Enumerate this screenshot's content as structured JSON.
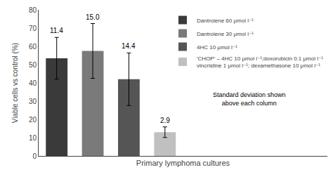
{
  "chart_data": {
    "type": "bar",
    "xlabel": "Primary lymphoma cultures",
    "ylabel": "Viable cells vs control (%)",
    "categories": [
      null,
      null,
      null,
      null
    ],
    "series": [
      {
        "name": "Dantrolene 60 μmol l⁻¹",
        "color": "#3a3a3a",
        "values": [
          53.5,
          null,
          null,
          null
        ],
        "errors": [
          11.4,
          null,
          null,
          null
        ],
        "error_labels": [
          "11.4",
          null,
          null,
          null
        ]
      },
      {
        "name": "Dantrolene 30 μmol l⁻¹",
        "color": "#7a7a7a",
        "values": [
          null,
          57.5,
          null,
          null
        ],
        "errors": [
          null,
          15.0,
          null,
          null
        ],
        "error_labels": [
          null,
          "15.0",
          null,
          null
        ]
      },
      {
        "name": "4HC 10 μmol l⁻¹",
        "color": "#555555",
        "values": [
          null,
          null,
          42.0,
          null
        ],
        "errors": [
          null,
          null,
          14.4,
          null
        ],
        "error_labels": [
          null,
          null,
          "14.4",
          null
        ]
      },
      {
        "name": "'CHOP' – 4HC 10 μmol l⁻¹;doxorubicin 0.1 μmol l⁻¹\nvincristine 1 μmol l⁻¹; dexamethasone 10 μmol l⁻¹",
        "color": "#c0c0c0",
        "values": [
          null,
          null,
          null,
          13.0
        ],
        "errors": [
          null,
          null,
          null,
          2.9
        ],
        "error_labels": [
          null,
          null,
          null,
          "2.9"
        ]
      }
    ],
    "annotations": [
      "Standard deviation shown\nabove each column"
    ],
    "ylim": [
      0,
      80
    ],
    "yticks": [
      0,
      10,
      20,
      30,
      40,
      50,
      60,
      70,
      80
    ],
    "grid": false,
    "legend": "upper right",
    "tick_labels": "y"
  }
}
